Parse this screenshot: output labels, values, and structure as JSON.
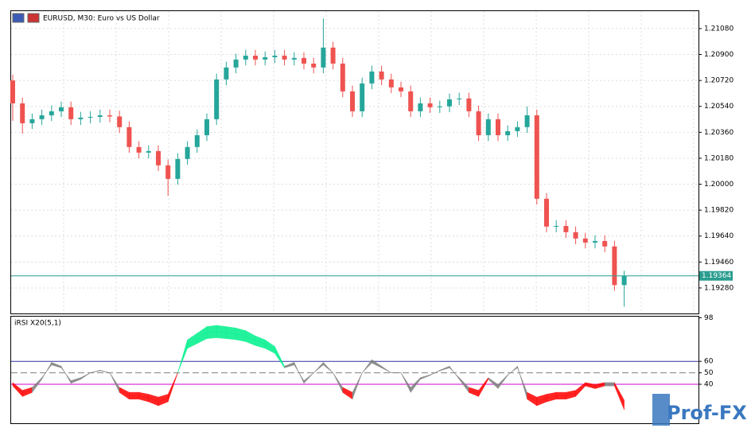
{
  "chart_data": [
    {
      "type": "candlestick",
      "title": "EURUSD, M30:  Euro vs US Dollar",
      "open": [
        1.2072,
        1.20561,
        1.20423,
        1.20451,
        1.20478,
        1.20506,
        1.20534,
        1.20451,
        1.20462,
        1.20467,
        1.20478,
        1.2047,
        1.20396,
        1.20258,
        1.20219,
        1.2023,
        1.20131,
        1.20037,
        1.20175,
        1.20258,
        1.2034,
        1.20451,
        1.20727,
        1.2081,
        1.20865,
        1.20892,
        1.20865,
        1.20881,
        1.20892,
        1.20865,
        1.20876,
        1.20837,
        1.2081,
        1.20948,
        1.20837,
        1.20644,
        1.20506,
        1.20699,
        1.20782,
        1.20727,
        1.20672,
        1.20644,
        1.20506,
        1.20561,
        1.20534,
        1.2054,
        1.20589,
        1.20595,
        1.20506,
        1.2034,
        1.20451,
        1.2034,
        1.20368,
        1.20396,
        1.20478,
        1.19899,
        1.19706,
        1.1971,
        1.19667,
        1.19623,
        1.19595,
        1.19606,
        1.19568,
        1.193
      ],
      "high": [
        1.2076,
        1.20601,
        1.20491,
        1.20518,
        1.20546,
        1.20574,
        1.20574,
        1.20502,
        1.20507,
        1.20518,
        1.20518,
        1.2051,
        1.20436,
        1.20298,
        1.2027,
        1.2027,
        1.20171,
        1.20215,
        1.20298,
        1.2038,
        1.20491,
        1.20767,
        1.2085,
        1.20905,
        1.20932,
        1.20932,
        1.20921,
        1.20932,
        1.20932,
        1.20916,
        1.20916,
        1.20877,
        1.2115,
        1.20988,
        1.20877,
        1.20684,
        1.20739,
        1.20822,
        1.20822,
        1.20767,
        1.20712,
        1.20684,
        1.20601,
        1.20601,
        1.2058,
        1.20629,
        1.20635,
        1.20635,
        1.20546,
        1.20491,
        1.20491,
        1.20408,
        1.20436,
        1.2054,
        1.20518,
        1.19939,
        1.1975,
        1.1975,
        1.19707,
        1.19663,
        1.19646,
        1.19646,
        1.19608,
        1.194
      ],
      "low": [
        1.2044,
        1.2035,
        1.20383,
        1.20411,
        1.20438,
        1.20466,
        1.20411,
        1.20411,
        1.20422,
        1.20427,
        1.2043,
        1.20356,
        1.20218,
        1.20179,
        1.20179,
        1.20091,
        1.1992,
        1.19997,
        1.20135,
        1.20218,
        1.203,
        1.20411,
        1.20687,
        1.2077,
        1.20825,
        1.20825,
        1.20825,
        1.20841,
        1.20825,
        1.20825,
        1.20797,
        1.2077,
        1.2077,
        1.20797,
        1.20604,
        1.20466,
        1.20466,
        1.20659,
        1.20687,
        1.20632,
        1.20604,
        1.20466,
        1.20466,
        1.20494,
        1.20494,
        1.205,
        1.20549,
        1.20466,
        1.203,
        1.203,
        1.203,
        1.203,
        1.20328,
        1.20356,
        1.19859,
        1.19666,
        1.19666,
        1.19627,
        1.19583,
        1.19555,
        1.19555,
        1.19528,
        1.1926,
        1.1915
      ],
      "close": [
        1.20561,
        1.20423,
        1.20451,
        1.20478,
        1.20506,
        1.20534,
        1.20451,
        1.20462,
        1.20467,
        1.20478,
        1.2047,
        1.20396,
        1.20258,
        1.20219,
        1.2023,
        1.20131,
        1.20037,
        1.20175,
        1.20258,
        1.2034,
        1.20451,
        1.20727,
        1.2081,
        1.20865,
        1.20892,
        1.20865,
        1.20881,
        1.20892,
        1.20865,
        1.20876,
        1.20837,
        1.2081,
        1.20948,
        1.20837,
        1.20644,
        1.20506,
        1.20699,
        1.20782,
        1.20727,
        1.20672,
        1.20644,
        1.20506,
        1.20561,
        1.20534,
        1.2054,
        1.20589,
        1.20595,
        1.20506,
        1.2034,
        1.20451,
        1.2034,
        1.20368,
        1.20396,
        1.20478,
        1.19899,
        1.19706,
        1.1971,
        1.19667,
        1.19623,
        1.19595,
        1.19606,
        1.19568,
        1.193,
        1.19364
      ],
      "up_color": "#26a69a",
      "down_color": "#ef5350",
      "ylim": [
        1.19103,
        1.21201
      ],
      "yticks": [
        {
          "value": 1.2108,
          "label": "1.21080"
        },
        {
          "value": 1.209,
          "label": "1.20900"
        },
        {
          "value": 1.2072,
          "label": "1.20720"
        },
        {
          "value": 1.2054,
          "label": "1.20540"
        },
        {
          "value": 1.2036,
          "label": "1.20360"
        },
        {
          "value": 1.2018,
          "label": "1.20180"
        },
        {
          "value": 1.2,
          "label": "1.20000"
        },
        {
          "value": 1.1982,
          "label": "1.19820"
        },
        {
          "value": 1.1964,
          "label": "1.19640"
        },
        {
          "value": 1.1946,
          "label": "1.19460"
        },
        {
          "value": 1.1928,
          "label": "1.19280"
        }
      ],
      "current_price": {
        "value": 1.19364,
        "label": "1.19364"
      },
      "current_color": "#2a9d8f",
      "grid": true
    },
    {
      "type": "rsi-fan",
      "title": "iRSI X20(5,1)",
      "lines": [
        {
          "values": [
            38.5,
            29.3,
            32.8,
            44.3,
            59.2,
            55.8,
            40.8,
            44.3,
            50,
            52.3,
            50,
            32.8,
            27,
            27,
            24.7,
            21.3,
            24.7,
            50,
            78.8,
            84.5,
            90.3,
            91.4,
            90.3,
            89.1,
            86.8,
            82.2,
            78.8,
            73,
            55.8,
            59.2,
            40.8,
            50,
            59.2,
            50,
            32.8,
            27,
            50,
            61.5,
            55.8,
            50,
            50,
            32.8,
            44.3,
            47.7,
            52.3,
            55.8,
            44.3,
            32.8,
            29.3,
            44.3,
            36.2,
            47.7,
            55.8,
            27,
            21.3,
            24.7,
            27,
            27,
            29.3,
            38.5,
            36.2,
            38.5,
            38.5,
            17.8
          ]
        },
        {
          "values": [
            40,
            32,
            35,
            45,
            58,
            55,
            42,
            45,
            50,
            52,
            50,
            35,
            30,
            30,
            28,
            25,
            28,
            50,
            75,
            80,
            85,
            86,
            85,
            84,
            82,
            78,
            75,
            70,
            55,
            58,
            42,
            50,
            58,
            50,
            35,
            30,
            50,
            60,
            55,
            50,
            50,
            35,
            45,
            48,
            52,
            55,
            45,
            35,
            32,
            45,
            38,
            48,
            55,
            30,
            25,
            28,
            30,
            30,
            32,
            40,
            38,
            40,
            40,
            22
          ]
        },
        {
          "values": [
            41.5,
            34.7,
            37.3,
            45.8,
            56.8,
            54.3,
            43.2,
            45.8,
            50,
            51.7,
            50,
            37.3,
            33,
            33,
            31.3,
            28.8,
            31.3,
            50,
            71.3,
            75.5,
            79.8,
            80.6,
            79.8,
            78.9,
            77.2,
            73.8,
            71.3,
            67,
            54.3,
            56.8,
            43.2,
            50,
            56.8,
            50,
            37.3,
            33,
            50,
            58.5,
            54.3,
            50,
            50,
            37.3,
            45.8,
            48.3,
            51.7,
            54.3,
            45.8,
            37.3,
            34.7,
            45.8,
            39.8,
            48.3,
            54.3,
            33,
            28.8,
            31.3,
            33,
            33,
            34.7,
            41.5,
            39.8,
            41.5,
            41.5,
            26.2
          ]
        }
      ],
      "ylim": [
        6,
        99
      ],
      "yticks": [
        98,
        60,
        50,
        40
      ],
      "level_colors": [
        "#3030a0",
        "#808080",
        "#d000d0"
      ],
      "above_color": "#00f08c",
      "between_color": "#808080",
      "below_color": "#ff0000"
    }
  ],
  "watermark": "Prof-FX"
}
